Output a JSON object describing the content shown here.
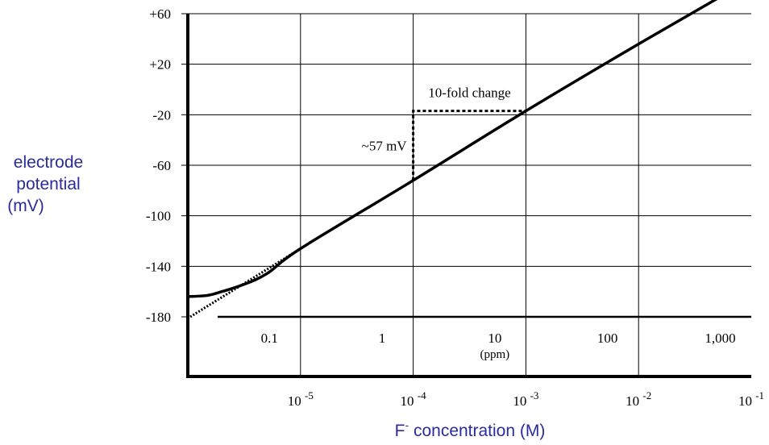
{
  "chart_data": {
    "type": "line",
    "title": "",
    "ylabel_lines": [
      "electrode",
      "potential",
      "(mV)"
    ],
    "xlabel": {
      "prefix": "F",
      "superscript": "-",
      "suffix": "concentration (M)"
    },
    "y_ticks": [
      "+60",
      "+20",
      "-20",
      "-60",
      "-100",
      "-140",
      "-180"
    ],
    "y_tick_values": [
      60,
      20,
      -20,
      -60,
      -100,
      -140,
      -180
    ],
    "ylim": [
      -180,
      60
    ],
    "x_scale": "log",
    "x_ticks_molar": [
      {
        "base": "10",
        "exp": "-5",
        "value": 1e-05
      },
      {
        "base": "10",
        "exp": "-4",
        "value": 0.0001
      },
      {
        "base": "10",
        "exp": "-3",
        "value": 0.001
      },
      {
        "base": "10",
        "exp": "-2",
        "value": 0.01
      },
      {
        "base": "10",
        "exp": "-1",
        "value": 0.1
      }
    ],
    "ppm_ticks": [
      {
        "label": "0.1",
        "molar": 5.3e-06
      },
      {
        "label": "1",
        "molar": 5.3e-05
      },
      {
        "label": "10",
        "molar": 0.00053
      },
      {
        "label": "100",
        "molar": 0.0053
      },
      {
        "label": "1,000",
        "molar": 0.053
      }
    ],
    "ppm_unit": "(ppm)",
    "grid": true,
    "series": [
      {
        "style": "solid",
        "points": [
          [
            1e-06,
            -164
          ],
          [
            1.5e-06,
            -163
          ],
          [
            2e-06,
            -160
          ],
          [
            3e-06,
            -155
          ],
          [
            5e-06,
            -146
          ],
          [
            1e-05,
            -126
          ],
          [
            0.0001,
            -72
          ],
          [
            0.001,
            -17
          ],
          [
            0.01,
            36
          ],
          [
            0.05,
            72
          ]
        ]
      },
      {
        "style": "dotted",
        "points": [
          [
            1.05e-06,
            -180
          ],
          [
            1e-05,
            -126
          ]
        ]
      }
    ],
    "annotations": {
      "change_label": "10-fold change",
      "mv_label": "~57 mV",
      "step_from": [
        0.0001,
        -72
      ],
      "step_corner": [
        0.0001,
        -17
      ],
      "step_to": [
        0.001,
        -17
      ]
    }
  }
}
